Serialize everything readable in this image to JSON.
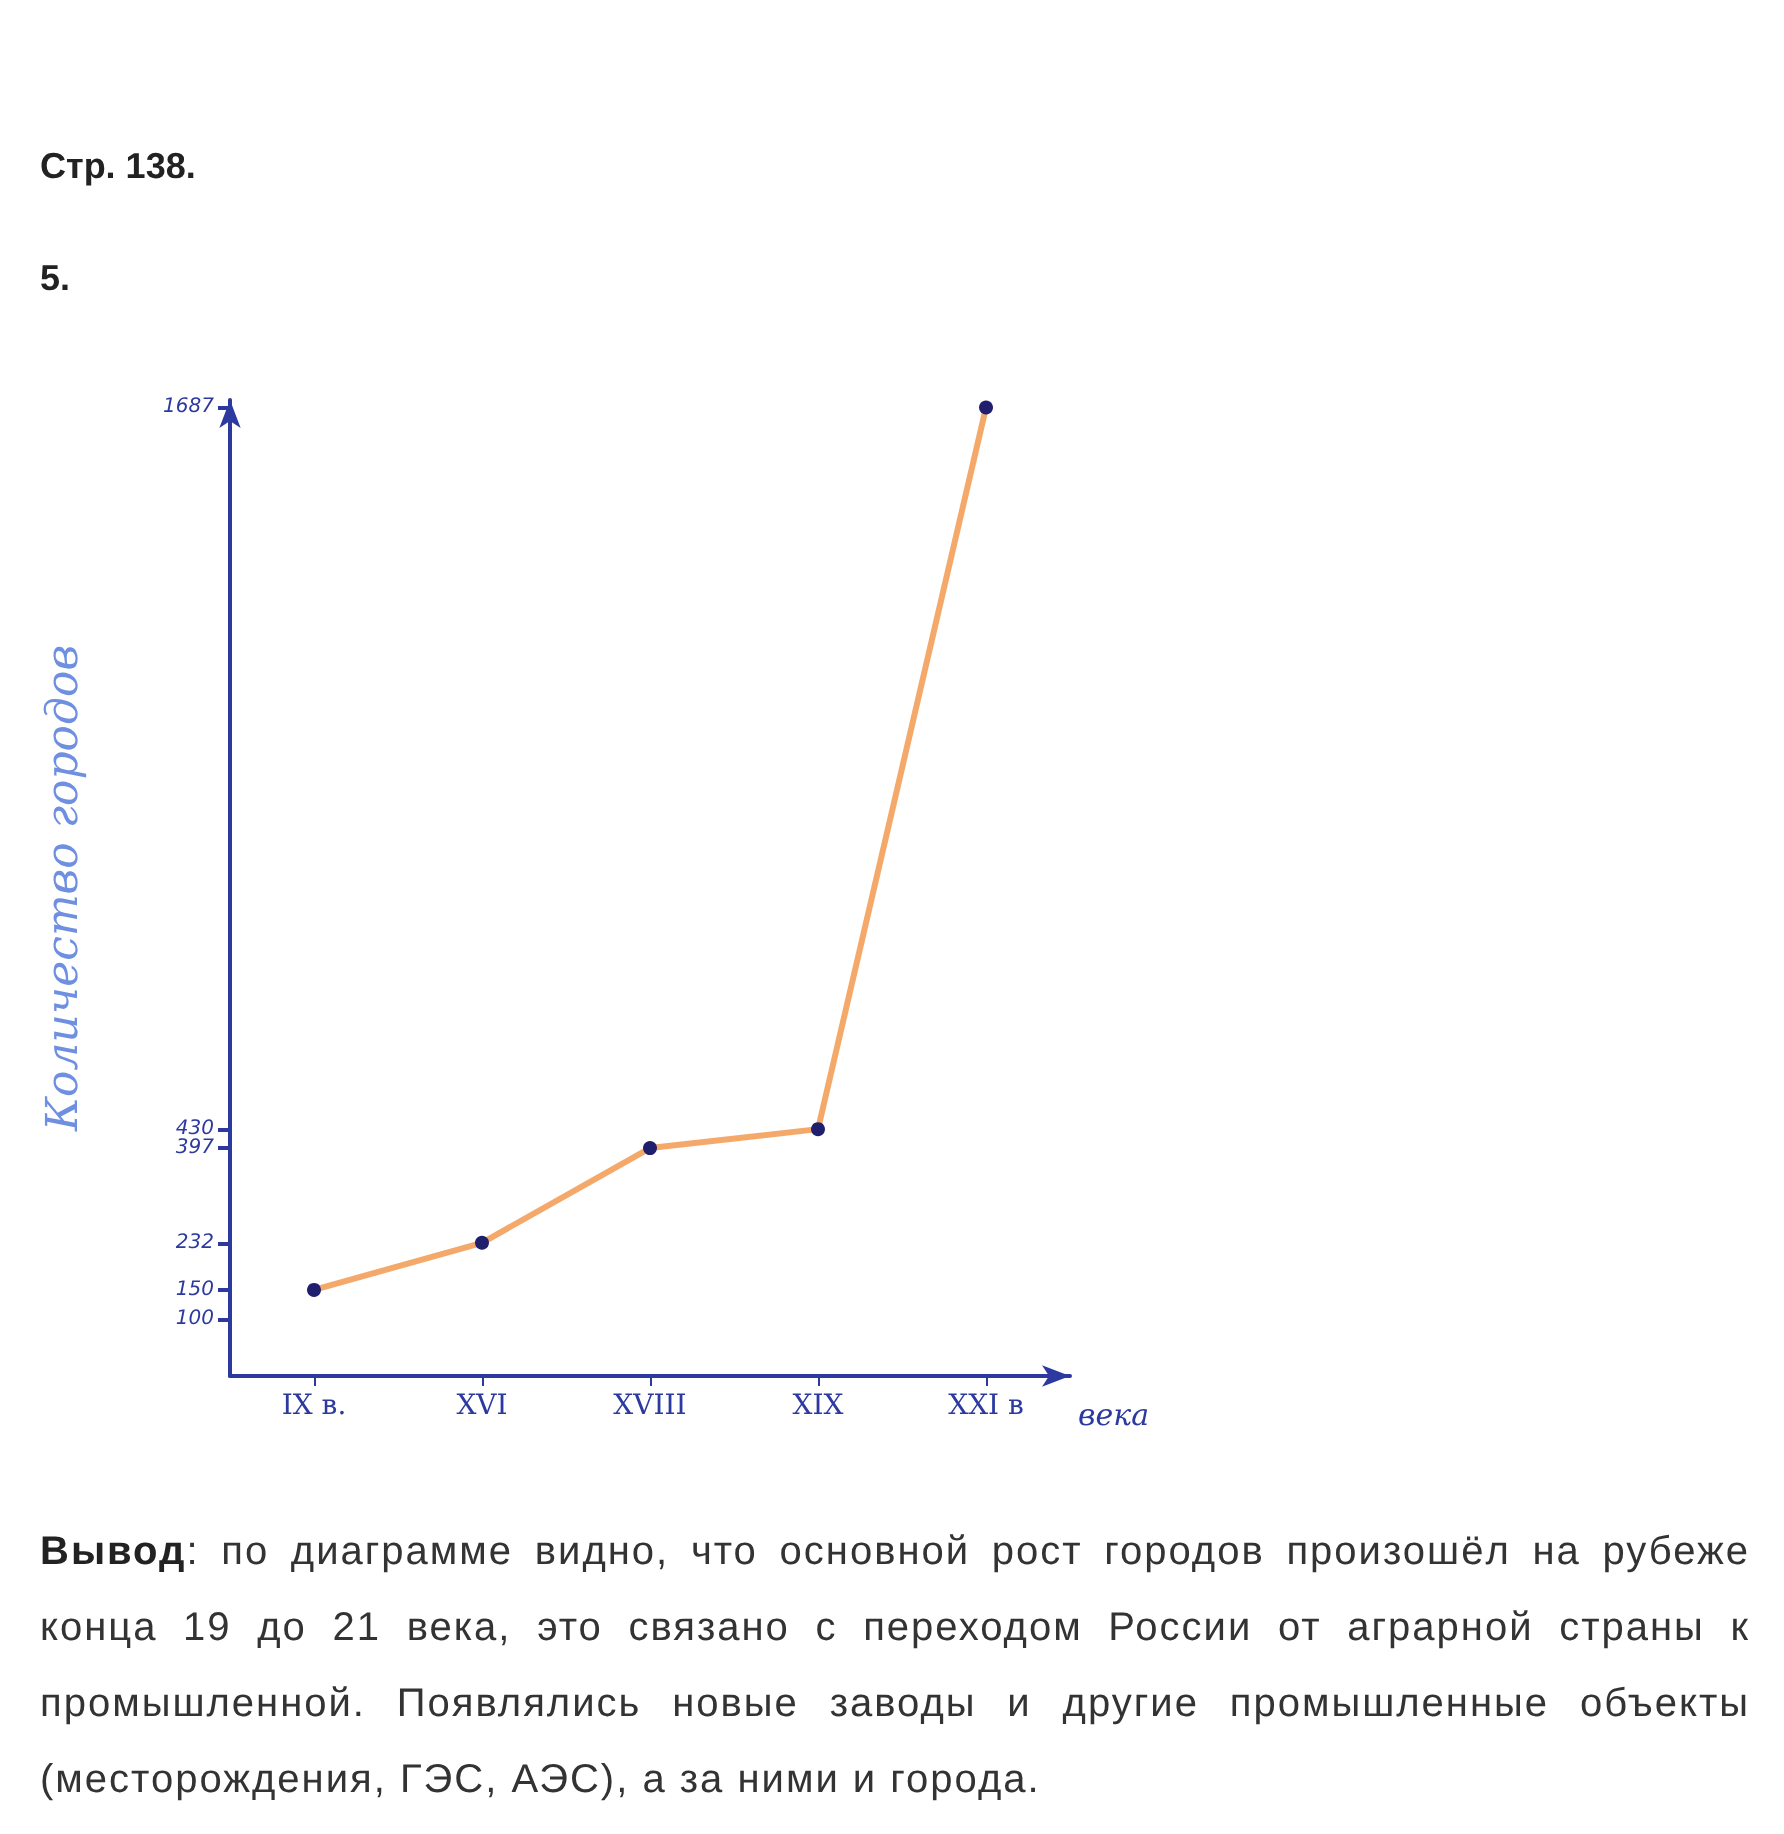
{
  "chart_data": {
    "type": "line",
    "title": "Стр. 138.",
    "subtitle": "5.",
    "xlabel": "века",
    "ylabel": "Количество городов",
    "categories": [
      "IX в.",
      "XVI",
      "XVIII",
      "XIX",
      "XXI в"
    ],
    "series": [
      {
        "color": "#f4a96a",
        "values": [
          150,
          232,
          397,
          430,
          1687
        ]
      }
    ],
    "marker": "circle",
    "line_style": "solid",
    "grid": false,
    "ylim": [
      0,
      1700
    ],
    "yticks": [
      100,
      150,
      232,
      397,
      430,
      1687
    ],
    "annotations": [
      "Вывод: по диаграмме видно, что основной рост городов произошёл на рубеже конца 19 до 21 века, это связано с переходом России от аграрной страны к промышленной. Появлялись новые заводы и другие промышленные объекты (месторождения, ГЭС, АЭС), а за ними и города."
    ]
  }
}
